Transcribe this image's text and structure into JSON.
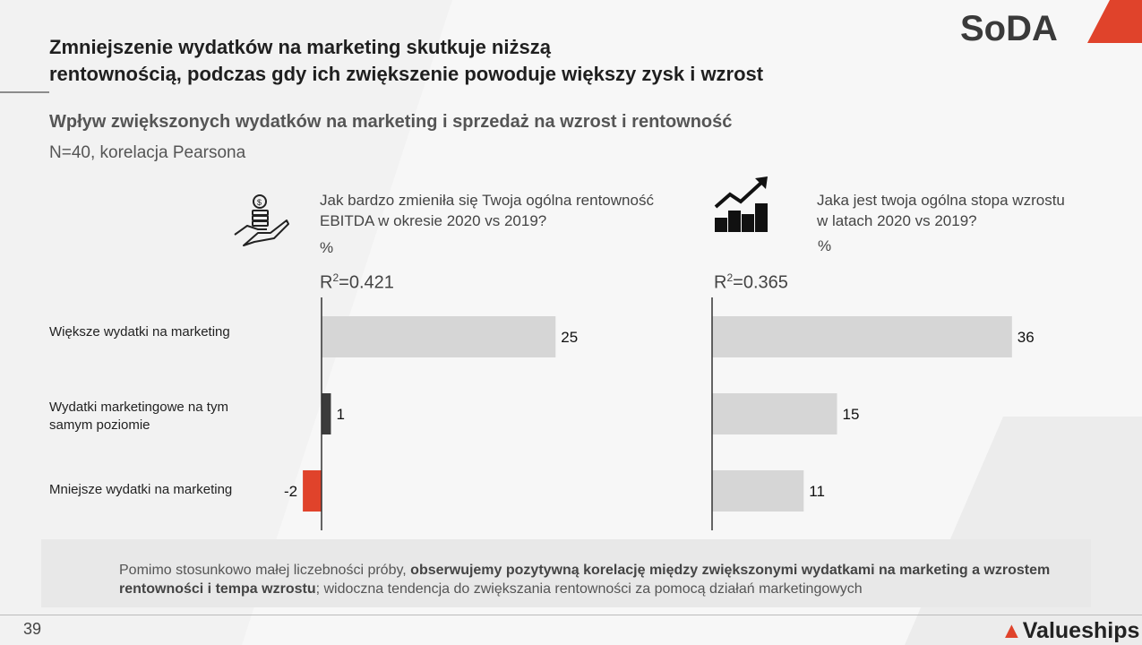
{
  "header": {
    "title_line1": "Zmniejszenie wydatków na marketing skutkuje niższą",
    "title_line2": "rentownością, podczas gdy ich zwiększenie powoduje większy zysk i wzrost",
    "subtitle": "Wpływ zwiększonych wydatków na marketing i sprzedaż na wzrost i rentowność",
    "note": "N=40, korelacja Pearsona",
    "logo": "SoDA"
  },
  "colors": {
    "accent": "#e0432b",
    "bar_gray": "#d6d6d6",
    "bar_dark": "#3b3b3b"
  },
  "icons": {
    "left": "hand-coins-icon",
    "right": "growth-chart-icon"
  },
  "chart_data": [
    {
      "type": "bar",
      "orientation": "horizontal",
      "title_line1": "Jak bardzo zmieniła się Twoja ogólna rentowność",
      "title_line2": "EBITDA w okresie 2020 vs 2019?",
      "unit": "%",
      "r2_label": "R",
      "r2_sup": "2",
      "r2_value": "=0.421",
      "categories": [
        "Większe wydatki na marketing",
        "Wydatki marketingowe na tym samym poziomie",
        "Mniejsze wydatki na marketing"
      ],
      "values": [
        25,
        1,
        -2
      ],
      "value_labels": [
        "25",
        "1",
        "-2"
      ],
      "bar_colors": [
        "#d6d6d6",
        "#3b3b3b",
        "#e0432b"
      ]
    },
    {
      "type": "bar",
      "orientation": "horizontal",
      "title_line1": "Jaka jest twoja ogólna stopa wzrostu",
      "title_line2": "w latach 2020 vs 2019?",
      "unit": "%",
      "r2_label": "R",
      "r2_sup": "2",
      "r2_value": "=0.365",
      "categories": [
        "Większe wydatki na marketing",
        "Wydatki marketingowe na tym samym poziomie",
        "Mniejsze wydatki na marketing"
      ],
      "values": [
        36,
        15,
        11
      ],
      "value_labels": [
        "36",
        "15",
        "11"
      ],
      "bar_colors": [
        "#d6d6d6",
        "#d6d6d6",
        "#d6d6d6"
      ]
    }
  ],
  "categories_display": {
    "cat1": "Większe wydatki na marketing",
    "cat2_line1": "Wydatki marketingowe na tym",
    "cat2_line2": "samym poziomie",
    "cat3": "Mniejsze wydatki na marketing"
  },
  "footer": {
    "text_a": "Pomimo stosunkowo małej liczebności próby, ",
    "text_b": "obserwujemy pozytywną korelację między zwiększonymi wydatkami na marketing a wzrostem rentowności i tempa wzrostu",
    "text_c": "; widoczna tendencja do zwiększania rentowności za pomocą działań marketingowych",
    "page_number": "39",
    "brand": "Valueships",
    "brand_mark": "▲"
  }
}
